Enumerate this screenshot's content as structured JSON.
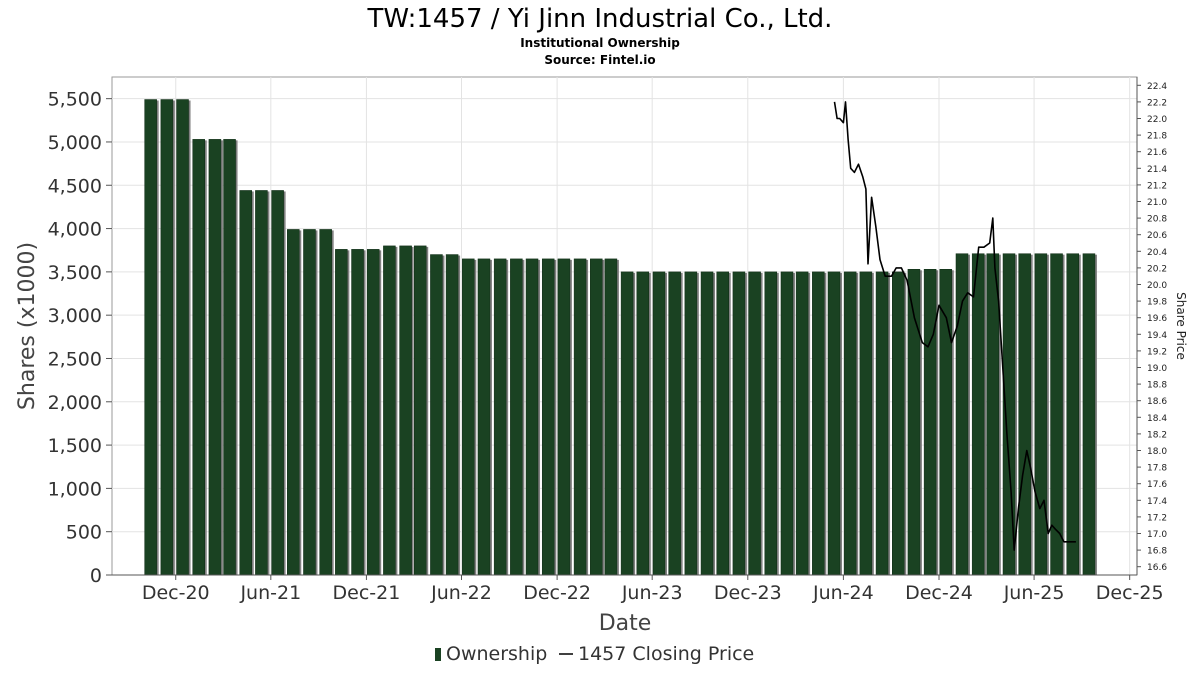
{
  "chart_data": {
    "type": "bar",
    "title": "TW:1457 / Yi Jinn Industrial Co., Ltd.",
    "subtitle": "Institutional Ownership",
    "source": "Source: Fintel.io",
    "xlabel": "Date",
    "ylabel": "Shares (x1000)",
    "y2label": "Share Price",
    "ylim": [
      0,
      5750
    ],
    "y2lim": [
      16.5,
      22.5
    ],
    "yticks": [
      "0",
      "500",
      "1,000",
      "1,500",
      "2,000",
      "2,500",
      "3,000",
      "3,500",
      "4,000",
      "4,500",
      "5,000",
      "5,500"
    ],
    "y2ticks": [
      "16.6",
      "16.8",
      "17.0",
      "17.2",
      "17.4",
      "17.6",
      "17.8",
      "18.0",
      "18.2",
      "18.4",
      "18.6",
      "18.8",
      "19.0",
      "19.2",
      "19.4",
      "19.6",
      "19.8",
      "20.0",
      "20.2",
      "20.4",
      "20.6",
      "20.8",
      "21.0",
      "21.2",
      "21.4",
      "21.6",
      "21.8",
      "22.0",
      "22.2",
      "22.4"
    ],
    "xticks": [
      {
        "label": "Dec-20",
        "date": "2020-12-01"
      },
      {
        "label": "Jun-21",
        "date": "2021-06-01"
      },
      {
        "label": "Dec-21",
        "date": "2021-12-01"
      },
      {
        "label": "Jun-22",
        "date": "2022-06-01"
      },
      {
        "label": "Dec-22",
        "date": "2022-12-01"
      },
      {
        "label": "Jun-23",
        "date": "2023-06-01"
      },
      {
        "label": "Dec-23",
        "date": "2023-12-01"
      },
      {
        "label": "Jun-24",
        "date": "2024-06-01"
      },
      {
        "label": "Dec-24",
        "date": "2024-12-01"
      },
      {
        "label": "Jun-25",
        "date": "2025-06-01"
      },
      {
        "label": "Dec-25",
        "date": "2025-12-01"
      }
    ],
    "xlim": [
      "2020-08-01",
      "2025-12-15"
    ],
    "grid": true,
    "legend_placement": "bottom-center",
    "series": [
      {
        "name": "Ownership",
        "kind": "bar",
        "color": "#1a4222",
        "shadow_color": "#808080",
        "points": [
          {
            "date": "2020-10-14",
            "value": 5490
          },
          {
            "date": "2020-11-14",
            "value": 5490
          },
          {
            "date": "2020-12-14",
            "value": 5490
          },
          {
            "date": "2021-01-14",
            "value": 5030
          },
          {
            "date": "2021-02-14",
            "value": 5030
          },
          {
            "date": "2021-03-14",
            "value": 5030
          },
          {
            "date": "2021-04-14",
            "value": 4440
          },
          {
            "date": "2021-05-14",
            "value": 4440
          },
          {
            "date": "2021-06-14",
            "value": 4440
          },
          {
            "date": "2021-07-14",
            "value": 3990
          },
          {
            "date": "2021-08-14",
            "value": 3990
          },
          {
            "date": "2021-09-14",
            "value": 3990
          },
          {
            "date": "2021-10-14",
            "value": 3760
          },
          {
            "date": "2021-11-14",
            "value": 3760
          },
          {
            "date": "2021-12-14",
            "value": 3760
          },
          {
            "date": "2022-01-14",
            "value": 3800
          },
          {
            "date": "2022-02-14",
            "value": 3800
          },
          {
            "date": "2022-03-14",
            "value": 3800
          },
          {
            "date": "2022-04-14",
            "value": 3700
          },
          {
            "date": "2022-05-14",
            "value": 3700
          },
          {
            "date": "2022-06-14",
            "value": 3650
          },
          {
            "date": "2022-07-14",
            "value": 3650
          },
          {
            "date": "2022-08-14",
            "value": 3650
          },
          {
            "date": "2022-09-14",
            "value": 3650
          },
          {
            "date": "2022-10-14",
            "value": 3650
          },
          {
            "date": "2022-11-14",
            "value": 3650
          },
          {
            "date": "2022-12-14",
            "value": 3650
          },
          {
            "date": "2023-01-14",
            "value": 3650
          },
          {
            "date": "2023-02-14",
            "value": 3650
          },
          {
            "date": "2023-03-14",
            "value": 3650
          },
          {
            "date": "2023-04-14",
            "value": 3500
          },
          {
            "date": "2023-05-14",
            "value": 3500
          },
          {
            "date": "2023-06-14",
            "value": 3500
          },
          {
            "date": "2023-07-14",
            "value": 3500
          },
          {
            "date": "2023-08-14",
            "value": 3500
          },
          {
            "date": "2023-09-14",
            "value": 3500
          },
          {
            "date": "2023-10-14",
            "value": 3500
          },
          {
            "date": "2023-11-14",
            "value": 3500
          },
          {
            "date": "2023-12-14",
            "value": 3500
          },
          {
            "date": "2024-01-14",
            "value": 3500
          },
          {
            "date": "2024-02-14",
            "value": 3500
          },
          {
            "date": "2024-03-14",
            "value": 3500
          },
          {
            "date": "2024-04-14",
            "value": 3500
          },
          {
            "date": "2024-05-14",
            "value": 3500
          },
          {
            "date": "2024-06-14",
            "value": 3500
          },
          {
            "date": "2024-07-14",
            "value": 3500
          },
          {
            "date": "2024-08-14",
            "value": 3500
          },
          {
            "date": "2024-09-14",
            "value": 3500
          },
          {
            "date": "2024-10-14",
            "value": 3530
          },
          {
            "date": "2024-11-14",
            "value": 3530
          },
          {
            "date": "2024-12-14",
            "value": 3530
          },
          {
            "date": "2025-01-14",
            "value": 3710
          },
          {
            "date": "2025-02-14",
            "value": 3710
          },
          {
            "date": "2025-03-14",
            "value": 3710
          },
          {
            "date": "2025-04-14",
            "value": 3710
          },
          {
            "date": "2025-05-14",
            "value": 3710
          },
          {
            "date": "2025-06-14",
            "value": 3710
          },
          {
            "date": "2025-07-14",
            "value": 3710
          },
          {
            "date": "2025-08-14",
            "value": 3710
          },
          {
            "date": "2025-09-14",
            "value": 3710
          }
        ]
      },
      {
        "name": "1457 Closing Price",
        "kind": "line",
        "axis": "right",
        "color": "#000000",
        "points": [
          {
            "date": "2024-05-15",
            "value": 22.2
          },
          {
            "date": "2024-05-20",
            "value": 22.0
          },
          {
            "date": "2024-05-25",
            "value": 22.0
          },
          {
            "date": "2024-06-01",
            "value": 21.95
          },
          {
            "date": "2024-06-05",
            "value": 22.2
          },
          {
            "date": "2024-06-10",
            "value": 21.75
          },
          {
            "date": "2024-06-15",
            "value": 21.4
          },
          {
            "date": "2024-06-22",
            "value": 21.35
          },
          {
            "date": "2024-06-30",
            "value": 21.45
          },
          {
            "date": "2024-07-08",
            "value": 21.3
          },
          {
            "date": "2024-07-14",
            "value": 21.15
          },
          {
            "date": "2024-07-18",
            "value": 20.25
          },
          {
            "date": "2024-07-25",
            "value": 21.05
          },
          {
            "date": "2024-08-02",
            "value": 20.7
          },
          {
            "date": "2024-08-10",
            "value": 20.3
          },
          {
            "date": "2024-08-20",
            "value": 20.1
          },
          {
            "date": "2024-09-01",
            "value": 20.1
          },
          {
            "date": "2024-09-10",
            "value": 20.2
          },
          {
            "date": "2024-09-20",
            "value": 20.2
          },
          {
            "date": "2024-10-01",
            "value": 20.05
          },
          {
            "date": "2024-10-15",
            "value": 19.6
          },
          {
            "date": "2024-10-30",
            "value": 19.3
          },
          {
            "date": "2024-11-10",
            "value": 19.25
          },
          {
            "date": "2024-11-20",
            "value": 19.4
          },
          {
            "date": "2024-12-01",
            "value": 19.75
          },
          {
            "date": "2024-12-15",
            "value": 19.6
          },
          {
            "date": "2024-12-25",
            "value": 19.3
          },
          {
            "date": "2025-01-05",
            "value": 19.5
          },
          {
            "date": "2025-01-15",
            "value": 19.8
          },
          {
            "date": "2025-01-25",
            "value": 19.9
          },
          {
            "date": "2025-02-05",
            "value": 19.85
          },
          {
            "date": "2025-02-15",
            "value": 20.45
          },
          {
            "date": "2025-02-25",
            "value": 20.45
          },
          {
            "date": "2025-03-08",
            "value": 20.5
          },
          {
            "date": "2025-03-14",
            "value": 20.8
          },
          {
            "date": "2025-03-18",
            "value": 20.2
          },
          {
            "date": "2025-03-25",
            "value": 19.8
          },
          {
            "date": "2025-04-03",
            "value": 18.9
          },
          {
            "date": "2025-04-10",
            "value": 18.2
          },
          {
            "date": "2025-04-18",
            "value": 17.5
          },
          {
            "date": "2025-04-24",
            "value": 16.8
          },
          {
            "date": "2025-05-02",
            "value": 17.3
          },
          {
            "date": "2025-05-10",
            "value": 17.7
          },
          {
            "date": "2025-05-18",
            "value": 18.0
          },
          {
            "date": "2025-05-25",
            "value": 17.8
          },
          {
            "date": "2025-06-03",
            "value": 17.5
          },
          {
            "date": "2025-06-12",
            "value": 17.3
          },
          {
            "date": "2025-06-20",
            "value": 17.4
          },
          {
            "date": "2025-06-28",
            "value": 17.0
          },
          {
            "date": "2025-07-05",
            "value": 17.1
          },
          {
            "date": "2025-07-12",
            "value": 17.05
          },
          {
            "date": "2025-07-20",
            "value": 17.0
          },
          {
            "date": "2025-07-28",
            "value": 16.9
          },
          {
            "date": "2025-08-08",
            "value": 16.9
          },
          {
            "date": "2025-08-20",
            "value": 16.9
          }
        ]
      }
    ]
  },
  "legend": {
    "items": [
      {
        "label": "Ownership",
        "marker": "bar",
        "color": "#1a4222"
      },
      {
        "label": "1457 Closing Price",
        "marker": "line",
        "color": "#000000"
      }
    ]
  }
}
